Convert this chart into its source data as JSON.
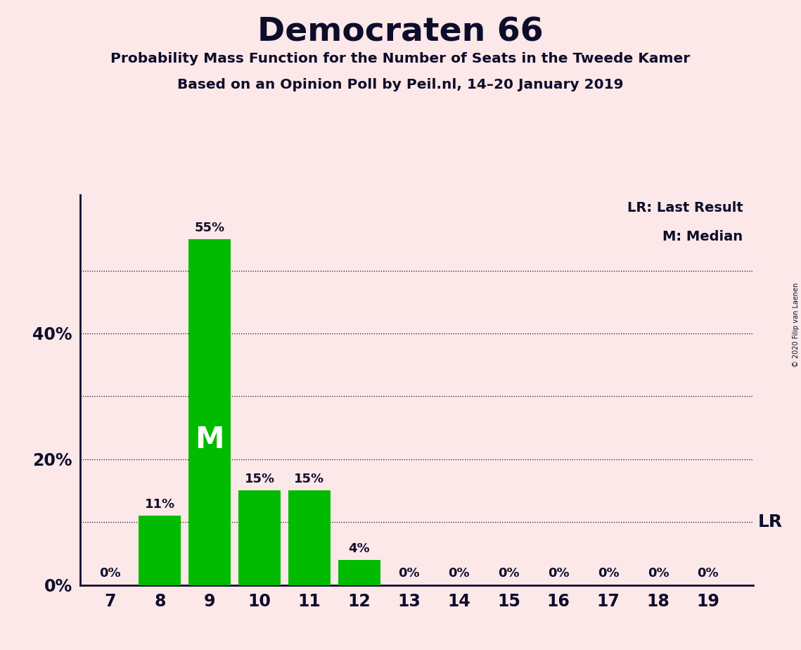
{
  "title": "Democraten 66",
  "subtitle1": "Probability Mass Function for the Number of Seats in the Tweede Kamer",
  "subtitle2": "Based on an Opinion Poll by Peil.nl, 14–20 January 2019",
  "copyright": "© 2020 Filip van Laenen",
  "categories": [
    7,
    8,
    9,
    10,
    11,
    12,
    13,
    14,
    15,
    16,
    17,
    18,
    19
  ],
  "values": [
    0,
    11,
    55,
    15,
    15,
    4,
    0,
    0,
    0,
    0,
    0,
    0,
    0
  ],
  "bar_color": "#00bb00",
  "background_color": "#fce8e8",
  "text_color": "#0d0d2b",
  "ylim": [
    0,
    62
  ],
  "median_bar": 9,
  "median_label": "M",
  "lr_value": 10,
  "legend_lr": "LR: Last Result",
  "legend_m": "M: Median",
  "dotted_gridlines": [
    10,
    30,
    50
  ],
  "solid_gridlines": [
    20,
    40
  ],
  "ytick_labels": [
    "0%",
    "20%",
    "40%"
  ],
  "ytick_values": [
    0,
    20,
    40
  ],
  "bar_labels": [
    "0%",
    "11%",
    "55%",
    "15%",
    "15%",
    "4%",
    "0%",
    "0%",
    "0%",
    "0%",
    "0%",
    "0%",
    "0%"
  ]
}
